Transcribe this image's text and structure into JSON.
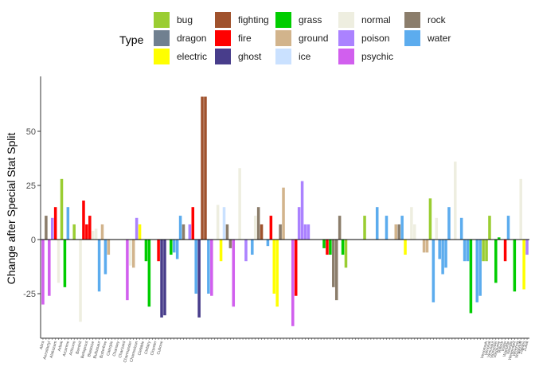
{
  "chart_data": {
    "type": "bar",
    "title": "",
    "xlabel": "",
    "ylabel": "Change after Special Stat Split",
    "ylim": [
      -45,
      72
    ],
    "yticks": [
      -25,
      0,
      25,
      50
    ],
    "grid": false,
    "zero_line": true,
    "legend": {
      "title": "Type",
      "position": "top",
      "columns": [
        [
          {
            "name": "bug",
            "color": "#9ACD32"
          },
          {
            "name": "dragon",
            "color": "#708090"
          },
          {
            "name": "electric",
            "color": "#FFFF00"
          }
        ],
        [
          {
            "name": "fighting",
            "color": "#A0522D"
          },
          {
            "name": "fire",
            "color": "#FF0000"
          },
          {
            "name": "ghost",
            "color": "#483D8B"
          }
        ],
        [
          {
            "name": "grass",
            "color": "#00CD00"
          },
          {
            "name": "ground",
            "color": "#D2B48C"
          },
          {
            "name": "ice",
            "color": "#CAE1FF"
          }
        ],
        [
          {
            "name": "normal",
            "color": "#EEEEE0"
          },
          {
            "name": "poison",
            "color": "#AB82FF"
          },
          {
            "name": "psychic",
            "color": "#D15FEE"
          }
        ],
        [
          {
            "name": "rock",
            "color": "#8B7D6B"
          },
          {
            "name": "water",
            "color": "#5CACEE"
          }
        ]
      ]
    },
    "x_labels_start": [
      "Abra",
      "Aerodactyl",
      "Alakazam",
      "Arbok",
      "Arcanine",
      "Articuno",
      "Beedrill",
      "Bellsprout",
      "Blastoise",
      "Bulbasaur",
      "Butterfree",
      "Caterpie",
      "Chansey",
      "Charizard",
      "Charmander",
      "Charmeleon",
      "Clefable",
      "Clefairy",
      "Cloyster",
      "Cubone"
    ],
    "x_labels_end": [
      "Venomoth",
      "Venonat",
      "Venusaur",
      "Victreebel",
      "Vileplume",
      "Voltorb",
      "Vulpix",
      "Wartortle",
      "Weedle",
      "Weepinbell",
      "Weezing",
      "Wigglytuff",
      "Zapdos",
      "Zubat"
    ],
    "bars": [
      {
        "t": "psychic",
        "v": -30
      },
      {
        "t": "rock",
        "v": 11
      },
      {
        "t": "psychic",
        "v": -26
      },
      {
        "t": "poison",
        "v": 10
      },
      {
        "t": "fire",
        "v": 15
      },
      {
        "t": "normal",
        "v": -20
      },
      {
        "t": "bug",
        "v": 28
      },
      {
        "t": "grass",
        "v": -22
      },
      {
        "t": "water",
        "v": 15
      },
      {
        "t": "grass",
        "v": 0
      },
      {
        "t": "bug",
        "v": 7
      },
      {
        "t": "bug",
        "v": 0
      },
      {
        "t": "normal",
        "v": -38
      },
      {
        "t": "fire",
        "v": 18
      },
      {
        "t": "fire",
        "v": 7
      },
      {
        "t": "fire",
        "v": 11
      },
      {
        "t": "normal",
        "v": 4
      },
      {
        "t": "normal",
        "v": 5
      },
      {
        "t": "water",
        "v": -24
      },
      {
        "t": "ground",
        "v": 7
      },
      {
        "t": "water",
        "v": -16
      },
      {
        "t": "ground",
        "v": -7
      },
      {
        "t": "normal",
        "v": 0
      },
      {
        "t": "normal",
        "v": 0
      },
      {
        "t": "normal",
        "v": 0
      },
      {
        "t": "normal",
        "v": 0
      },
      {
        "t": "normal",
        "v": 0
      },
      {
        "t": "psychic",
        "v": -28
      },
      {
        "t": "normal",
        "v": -12
      },
      {
        "t": "ground",
        "v": -13
      },
      {
        "t": "poison",
        "v": 10
      },
      {
        "t": "electric",
        "v": 7
      },
      {
        "t": "ground",
        "v": 0
      },
      {
        "t": "grass",
        "v": -10
      },
      {
        "t": "grass",
        "v": -31
      },
      {
        "t": "normal",
        "v": 0
      },
      {
        "t": "normal",
        "v": 0
      },
      {
        "t": "fire",
        "v": -10
      },
      {
        "t": "ghost",
        "v": -36
      },
      {
        "t": "ghost",
        "v": -35
      },
      {
        "t": "normal",
        "v": 0
      },
      {
        "t": "grass",
        "v": -7
      },
      {
        "t": "water",
        "v": -6
      },
      {
        "t": "water",
        "v": -9
      },
      {
        "t": "water",
        "v": 11
      },
      {
        "t": "rock",
        "v": 7
      },
      {
        "t": "normal",
        "v": 0
      },
      {
        "t": "poison",
        "v": 7
      },
      {
        "t": "fire",
        "v": 15
      },
      {
        "t": "water",
        "v": -25
      },
      {
        "t": "ghost",
        "v": -36
      },
      {
        "t": "fighting",
        "v": 66
      },
      {
        "t": "fighting",
        "v": 66
      },
      {
        "t": "water",
        "v": -25
      },
      {
        "t": "psychic",
        "v": -26
      },
      {
        "t": "normal",
        "v": 0
      },
      {
        "t": "normal",
        "v": 16
      },
      {
        "t": "electric",
        "v": -10
      },
      {
        "t": "ice",
        "v": 15
      },
      {
        "t": "rock",
        "v": 7
      },
      {
        "t": "rock",
        "v": -4
      },
      {
        "t": "psychic",
        "v": -31
      },
      {
        "t": "normal",
        "v": 0
      },
      {
        "t": "normal",
        "v": 33
      },
      {
        "t": "normal",
        "v": 0
      },
      {
        "t": "poison",
        "v": -10
      },
      {
        "t": "normal",
        "v": 0
      },
      {
        "t": "water",
        "v": -7
      },
      {
        "t": "normal",
        "v": 11
      },
      {
        "t": "rock",
        "v": 15
      },
      {
        "t": "fighting",
        "v": 7
      },
      {
        "t": "grass",
        "v": 0
      },
      {
        "t": "water",
        "v": -3
      },
      {
        "t": "fire",
        "v": 11
      },
      {
        "t": "electric",
        "v": -25
      },
      {
        "t": "electric",
        "v": -31
      },
      {
        "t": "rock",
        "v": 7
      },
      {
        "t": "ground",
        "v": 24
      },
      {
        "t": "normal",
        "v": 0
      },
      {
        "t": "normal",
        "v": 0
      },
      {
        "t": "psychic",
        "v": -40
      },
      {
        "t": "fire",
        "v": -26
      },
      {
        "t": "poison",
        "v": 15
      },
      {
        "t": "poison",
        "v": 27
      },
      {
        "t": "poison",
        "v": 7
      },
      {
        "t": "poison",
        "v": 7
      },
      {
        "t": "normal",
        "v": 0
      },
      {
        "t": "normal",
        "v": 0
      },
      {
        "t": "normal",
        "v": 0
      },
      {
        "t": "normal",
        "v": 0
      },
      {
        "t": "grass",
        "v": -4
      },
      {
        "t": "fire",
        "v": -7
      },
      {
        "t": "grass",
        "v": -7
      },
      {
        "t": "rock",
        "v": -22
      },
      {
        "t": "rock",
        "v": -28
      },
      {
        "t": "rock",
        "v": 11
      },
      {
        "t": "grass",
        "v": -7
      },
      {
        "t": "bug",
        "v": -13
      },
      {
        "t": "normal",
        "v": 0
      },
      {
        "t": "normal",
        "v": 0
      },
      {
        "t": "normal",
        "v": 0
      },
      {
        "t": "normal",
        "v": 0
      },
      {
        "t": "normal",
        "v": 0
      },
      {
        "t": "bug",
        "v": 11
      },
      {
        "t": "normal",
        "v": 0
      },
      {
        "t": "normal",
        "v": 0
      },
      {
        "t": "normal",
        "v": 0
      },
      {
        "t": "water",
        "v": 15
      },
      {
        "t": "normal",
        "v": 0
      },
      {
        "t": "normal",
        "v": 0
      },
      {
        "t": "water",
        "v": 11
      },
      {
        "t": "normal",
        "v": 0
      },
      {
        "t": "normal",
        "v": 0
      },
      {
        "t": "ground",
        "v": 7
      },
      {
        "t": "rock",
        "v": 7
      },
      {
        "t": "water",
        "v": 11
      },
      {
        "t": "electric",
        "v": -7
      },
      {
        "t": "normal",
        "v": 0
      },
      {
        "t": "normal",
        "v": 15
      },
      {
        "t": "normal",
        "v": 7
      },
      {
        "t": "normal",
        "v": 0
      },
      {
        "t": "normal",
        "v": 0
      },
      {
        "t": "ground",
        "v": -6
      },
      {
        "t": "ground",
        "v": -6
      },
      {
        "t": "bug",
        "v": 19
      },
      {
        "t": "water",
        "v": -29
      },
      {
        "t": "normal",
        "v": 10
      },
      {
        "t": "water",
        "v": -9
      },
      {
        "t": "water",
        "v": -16
      },
      {
        "t": "water",
        "v": -13
      },
      {
        "t": "water",
        "v": 15
      },
      {
        "t": "normal",
        "v": 0
      },
      {
        "t": "normal",
        "v": 36
      },
      {
        "t": "normal",
        "v": 0
      },
      {
        "t": "water",
        "v": 10
      },
      {
        "t": "water",
        "v": -10
      },
      {
        "t": "water",
        "v": -10
      },
      {
        "t": "grass",
        "v": -34
      },
      {
        "t": "normal",
        "v": 0
      },
      {
        "t": "water",
        "v": -29
      },
      {
        "t": "water",
        "v": -26
      },
      {
        "t": "bug",
        "v": -10
      },
      {
        "t": "bug",
        "v": -10
      },
      {
        "t": "bug",
        "v": 11
      },
      {
        "t": "normal",
        "v": 0
      },
      {
        "t": "grass",
        "v": -20
      },
      {
        "t": "grass",
        "v": 1
      },
      {
        "t": "normal",
        "v": 0
      },
      {
        "t": "fire",
        "v": -10
      },
      {
        "t": "water",
        "v": 11
      },
      {
        "t": "normal",
        "v": 0
      },
      {
        "t": "grass",
        "v": -24
      },
      {
        "t": "normal",
        "v": 0
      },
      {
        "t": "normal",
        "v": 28
      },
      {
        "t": "electric",
        "v": -23
      },
      {
        "t": "poison",
        "v": -7
      }
    ]
  }
}
